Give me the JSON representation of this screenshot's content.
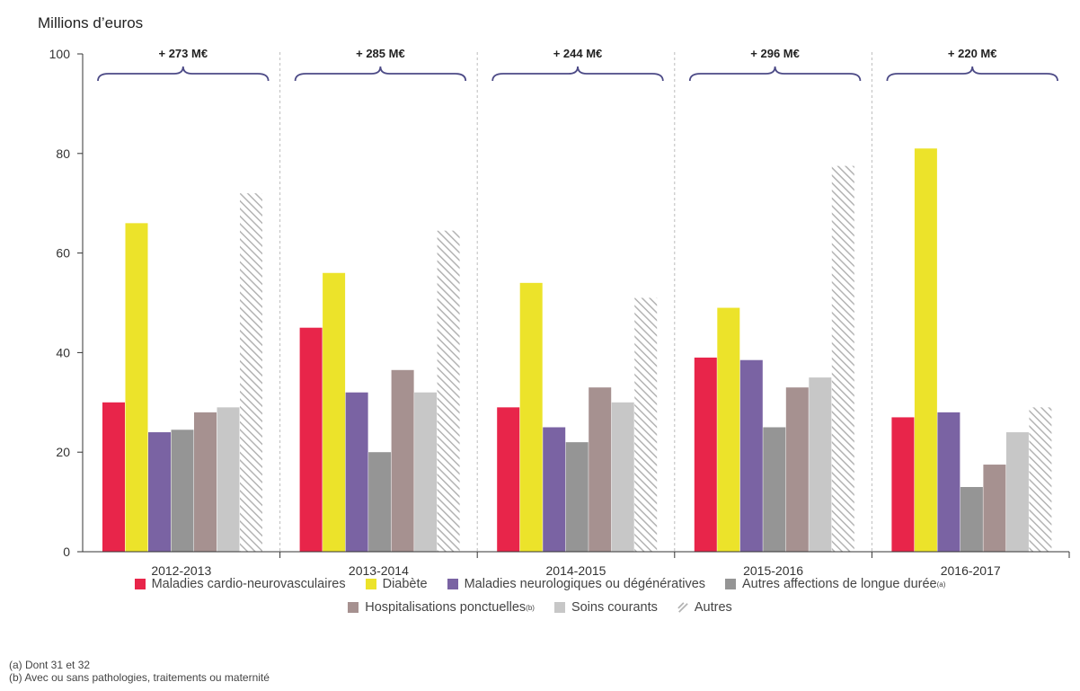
{
  "chart_data": {
    "type": "bar",
    "ylabel": "Millions d’euros",
    "ylim": [
      0,
      100
    ],
    "yticks": [
      0,
      20,
      40,
      60,
      80,
      100
    ],
    "categories": [
      "2012-2013",
      "2013-2014",
      "2014-2015",
      "2015-2016",
      "2016-2017"
    ],
    "annotations": [
      "+ 273 M€",
      "+ 285 M€",
      "+ 244 M€",
      "+ 296 M€",
      "+ 220 M€"
    ],
    "series": [
      {
        "name": "Maladies cardio-neurovasculaires",
        "color": "#e8254a",
        "pattern": "solid",
        "values": [
          30,
          45,
          29,
          39,
          27
        ]
      },
      {
        "name": "Diabète",
        "color": "#ece32a",
        "pattern": "solid",
        "values": [
          66,
          56,
          54,
          49,
          81
        ]
      },
      {
        "name": "Maladies neurologiques ou dégénératives",
        "color": "#7a63a3",
        "pattern": "solid",
        "values": [
          24,
          32,
          25,
          38.5,
          28
        ]
      },
      {
        "name": "Autres affections de longue durée",
        "sup": "(a)",
        "color": "#959595",
        "pattern": "solid",
        "values": [
          24.5,
          20,
          22,
          25,
          13
        ]
      },
      {
        "name": "Hospitalisations ponctuelles",
        "sup": "(b)",
        "color": "#a69190",
        "pattern": "solid",
        "values": [
          28,
          36.5,
          33,
          33,
          17.5
        ]
      },
      {
        "name": "Soins courants",
        "color": "#c7c7c7",
        "pattern": "solid",
        "values": [
          29,
          32,
          30,
          35,
          24
        ]
      },
      {
        "name": "Autres",
        "color": "#c0c0c0",
        "pattern": "hatch",
        "values": [
          72,
          64.5,
          51,
          77.5,
          29
        ]
      }
    ],
    "grid": false,
    "legend_position": "bottom"
  },
  "notes": [
    "(a) Dont 31 et 32",
    "(b) Avec ou sans pathologies, traitements ou maternité"
  ]
}
